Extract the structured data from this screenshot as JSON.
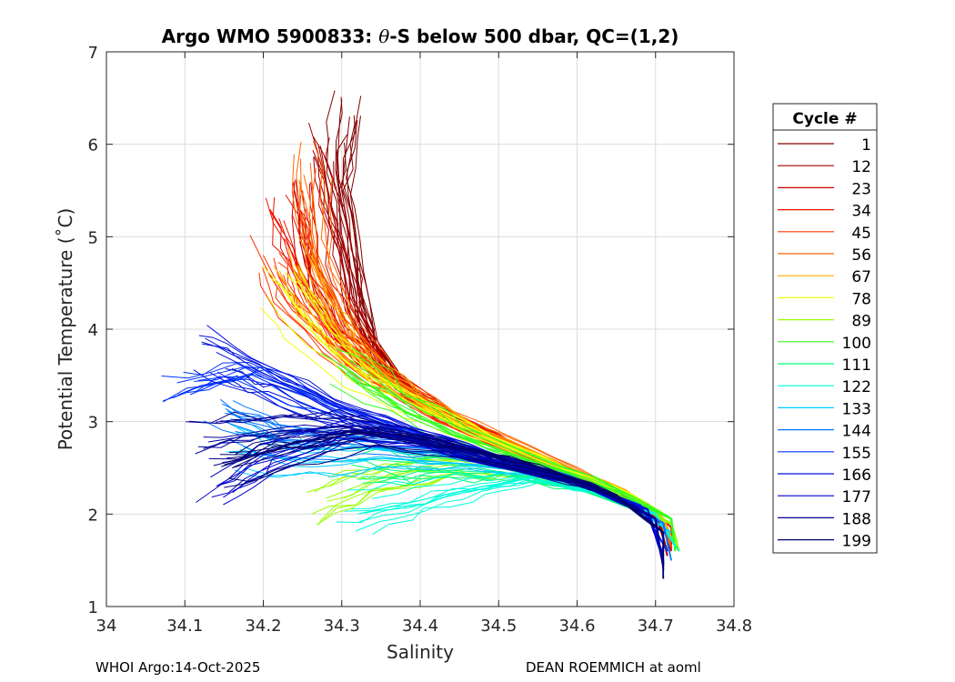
{
  "chart_data": {
    "type": "line",
    "title_prefix": "Argo WMO 5900833: ",
    "title_theta": "θ",
    "title_suffix": "-S below 500 dbar,  QC=(1,2)",
    "xlabel": "Salinity",
    "ylabel": "Potential Temperature (˚C)",
    "xlim": [
      34.0,
      34.8
    ],
    "ylim": [
      1,
      7
    ],
    "xticks": [
      "34",
      "34.1",
      "34.2",
      "34.3",
      "34.4",
      "34.5",
      "34.6",
      "34.7",
      "34.8"
    ],
    "yticks": [
      "1",
      "2",
      "3",
      "4",
      "5",
      "6",
      "7"
    ],
    "grid": true,
    "legend_title": "Cycle #",
    "legend_placement": "right",
    "series": [
      {
        "name": "1",
        "color": "#800000",
        "points": [
          [
            34.31,
            6.3
          ],
          [
            34.3,
            5.5
          ],
          [
            34.32,
            4.5
          ],
          [
            34.34,
            3.8
          ],
          [
            34.38,
            3.35
          ],
          [
            34.45,
            3.0
          ],
          [
            34.55,
            2.6
          ],
          [
            34.65,
            2.25
          ],
          [
            34.7,
            2.0
          ],
          [
            34.715,
            1.6
          ]
        ]
      },
      {
        "name": "12",
        "color": "#a30000",
        "points": [
          [
            34.27,
            6.0
          ],
          [
            34.29,
            5.2
          ],
          [
            34.31,
            4.3
          ],
          [
            34.35,
            3.6
          ],
          [
            34.4,
            3.2
          ],
          [
            34.48,
            2.9
          ],
          [
            34.58,
            2.5
          ],
          [
            34.66,
            2.2
          ],
          [
            34.705,
            1.95
          ],
          [
            34.715,
            1.55
          ]
        ]
      },
      {
        "name": "23",
        "color": "#cc0000",
        "points": [
          [
            34.25,
            5.5
          ],
          [
            34.26,
            4.6
          ],
          [
            34.3,
            4.0
          ],
          [
            34.36,
            3.5
          ],
          [
            34.42,
            3.1
          ],
          [
            34.5,
            2.8
          ],
          [
            34.6,
            2.4
          ],
          [
            34.68,
            2.15
          ],
          [
            34.71,
            1.9
          ],
          [
            34.72,
            1.6
          ]
        ]
      },
      {
        "name": "34",
        "color": "#ee1100",
        "points": [
          [
            34.22,
            5.2
          ],
          [
            34.25,
            4.5
          ],
          [
            34.3,
            3.8
          ],
          [
            34.37,
            3.35
          ],
          [
            34.44,
            3.0
          ],
          [
            34.52,
            2.7
          ],
          [
            34.62,
            2.35
          ],
          [
            34.69,
            2.1
          ],
          [
            34.72,
            1.85
          ],
          [
            34.72,
            1.6
          ]
        ]
      },
      {
        "name": "45",
        "color": "#ff3300",
        "points": [
          [
            34.2,
            4.8
          ],
          [
            34.23,
            4.3
          ],
          [
            34.3,
            3.7
          ],
          [
            34.38,
            3.3
          ],
          [
            34.45,
            2.95
          ],
          [
            34.55,
            2.6
          ],
          [
            34.63,
            2.3
          ],
          [
            34.7,
            2.05
          ],
          [
            34.72,
            1.7
          ]
        ]
      },
      {
        "name": "56",
        "color": "#ff6600",
        "points": [
          [
            34.26,
            5.8
          ],
          [
            34.27,
            4.8
          ],
          [
            34.31,
            4.0
          ],
          [
            34.37,
            3.4
          ],
          [
            34.44,
            3.05
          ],
          [
            34.54,
            2.7
          ],
          [
            34.63,
            2.35
          ],
          [
            34.7,
            2.05
          ],
          [
            34.72,
            1.65
          ]
        ]
      },
      {
        "name": "67",
        "color": "#ffaa00",
        "points": [
          [
            34.24,
            4.7
          ],
          [
            34.28,
            4.1
          ],
          [
            34.33,
            3.6
          ],
          [
            34.4,
            3.2
          ],
          [
            34.48,
            2.85
          ],
          [
            34.58,
            2.5
          ],
          [
            34.66,
            2.25
          ],
          [
            34.71,
            1.95
          ],
          [
            34.725,
            1.65
          ]
        ]
      },
      {
        "name": "78",
        "color": "#eeff11",
        "points": [
          [
            34.22,
            4.5
          ],
          [
            34.27,
            3.9
          ],
          [
            34.34,
            3.4
          ],
          [
            34.41,
            3.1
          ],
          [
            34.49,
            2.8
          ],
          [
            34.59,
            2.45
          ],
          [
            34.67,
            2.2
          ],
          [
            34.72,
            1.95
          ],
          [
            34.725,
            1.6
          ]
        ]
      },
      {
        "name": "89",
        "color": "#99ff00",
        "points": [
          [
            34.28,
            2.17
          ],
          [
            34.35,
            2.4
          ],
          [
            34.45,
            2.55
          ],
          [
            34.55,
            2.45
          ],
          [
            34.65,
            2.2
          ],
          [
            34.72,
            1.9
          ],
          [
            34.73,
            1.6
          ]
        ]
      },
      {
        "name": "100",
        "color": "#33ff22",
        "points": [
          [
            34.3,
            3.6
          ],
          [
            34.37,
            3.2
          ],
          [
            34.45,
            2.85
          ],
          [
            34.55,
            2.55
          ],
          [
            34.65,
            2.25
          ],
          [
            34.72,
            1.95
          ],
          [
            34.725,
            1.6
          ]
        ]
      },
      {
        "name": "111",
        "color": "#00ff77",
        "points": [
          [
            34.32,
            2.6
          ],
          [
            34.4,
            2.55
          ],
          [
            34.5,
            2.5
          ],
          [
            34.6,
            2.3
          ],
          [
            34.7,
            2.0
          ],
          [
            34.73,
            1.6
          ]
        ]
      },
      {
        "name": "122",
        "color": "#00ffdd",
        "points": [
          [
            34.32,
            2.0
          ],
          [
            34.4,
            2.15
          ],
          [
            34.48,
            2.3
          ],
          [
            34.55,
            2.4
          ],
          [
            34.62,
            2.25
          ],
          [
            34.7,
            2.0
          ],
          [
            34.725,
            1.65
          ]
        ]
      },
      {
        "name": "133",
        "color": "#00ccff",
        "points": [
          [
            34.17,
            2.7
          ],
          [
            34.25,
            2.55
          ],
          [
            34.35,
            2.6
          ],
          [
            34.45,
            2.55
          ],
          [
            34.55,
            2.45
          ],
          [
            34.65,
            2.2
          ],
          [
            34.72,
            1.8
          ]
        ]
      },
      {
        "name": "144",
        "color": "#0077ff",
        "points": [
          [
            34.15,
            3.0
          ],
          [
            34.22,
            2.8
          ],
          [
            34.32,
            2.75
          ],
          [
            34.42,
            2.7
          ],
          [
            34.52,
            2.55
          ],
          [
            34.62,
            2.3
          ],
          [
            34.71,
            1.9
          ],
          [
            34.72,
            1.5
          ]
        ]
      },
      {
        "name": "155",
        "color": "#0033ff",
        "points": [
          [
            34.09,
            3.42
          ],
          [
            34.18,
            3.6
          ],
          [
            34.28,
            3.2
          ],
          [
            34.38,
            2.9
          ],
          [
            34.48,
            2.6
          ],
          [
            34.58,
            2.4
          ],
          [
            34.68,
            2.1
          ],
          [
            34.715,
            1.6
          ]
        ]
      },
      {
        "name": "166",
        "color": "#0011dd",
        "points": [
          [
            34.14,
            3.75
          ],
          [
            34.2,
            3.5
          ],
          [
            34.3,
            3.1
          ],
          [
            34.4,
            2.85
          ],
          [
            34.5,
            2.6
          ],
          [
            34.6,
            2.35
          ],
          [
            34.69,
            2.05
          ],
          [
            34.71,
            1.55
          ]
        ]
      },
      {
        "name": "177",
        "color": "#0000cc",
        "points": [
          [
            34.14,
            2.3
          ],
          [
            34.2,
            2.6
          ],
          [
            34.3,
            2.9
          ],
          [
            34.4,
            2.8
          ],
          [
            34.5,
            2.55
          ],
          [
            34.6,
            2.35
          ],
          [
            34.69,
            2.0
          ],
          [
            34.71,
            1.5
          ]
        ]
      },
      {
        "name": "188",
        "color": "#000099",
        "points": [
          [
            34.13,
            2.78
          ],
          [
            34.22,
            2.9
          ],
          [
            34.32,
            2.95
          ],
          [
            34.42,
            2.75
          ],
          [
            34.52,
            2.5
          ],
          [
            34.62,
            2.3
          ],
          [
            34.7,
            1.95
          ],
          [
            34.71,
            1.4
          ]
        ]
      },
      {
        "name": "199",
        "color": "#000070",
        "points": [
          [
            34.16,
            2.5
          ],
          [
            34.25,
            2.7
          ],
          [
            34.35,
            2.85
          ],
          [
            34.45,
            2.7
          ],
          [
            34.55,
            2.5
          ],
          [
            34.65,
            2.2
          ],
          [
            34.71,
            1.8
          ],
          [
            34.71,
            1.3
          ]
        ]
      }
    ]
  },
  "footer": {
    "left": "WHOI Argo:14-Oct-2025",
    "right": "DEAN ROEMMICH at aoml"
  }
}
